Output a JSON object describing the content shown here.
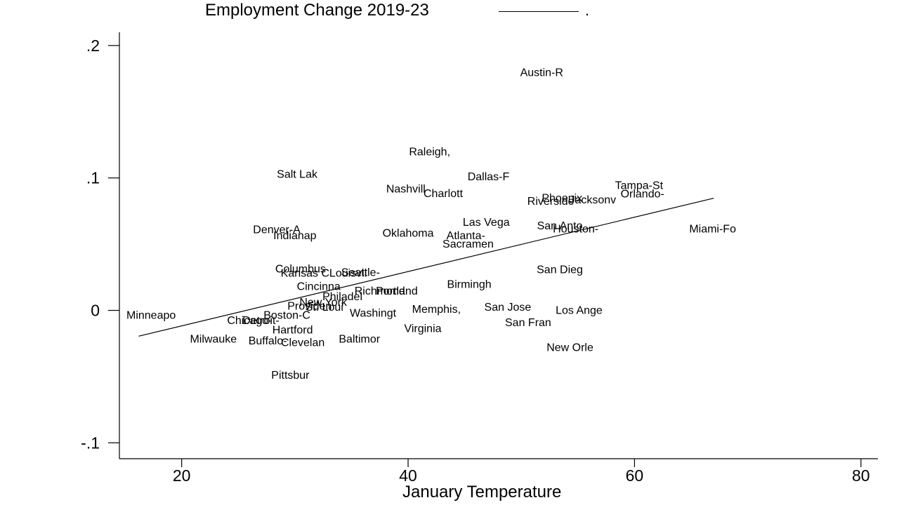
{
  "chart_data": {
    "type": "scatter",
    "title": "Employment Change 2019-23",
    "legend": {
      "label": "."
    },
    "xlabel": "January Temperature",
    "ylabel": "",
    "xlim": [
      14.5,
      81.5
    ],
    "ylim": [
      -0.112,
      0.21
    ],
    "xticks": [
      20,
      40,
      60,
      80
    ],
    "xtick_labels": [
      "20",
      "40",
      "60",
      "80"
    ],
    "yticks": [
      -0.1,
      0,
      0.1,
      0.2
    ],
    "ytick_labels": [
      "-.1",
      "0",
      ".1",
      ".2"
    ],
    "grid": false,
    "fit_line": {
      "x": [
        16.2,
        67.0
      ],
      "y": [
        -0.0195,
        0.0847
      ]
    },
    "points": [
      {
        "label": "Austin-R",
        "x": 51.8,
        "y": 0.1795
      },
      {
        "label": "Raleigh,",
        "x": 41.9,
        "y": 0.1198
      },
      {
        "label": "Salt Lak",
        "x": 30.2,
        "y": 0.1027
      },
      {
        "label": "Dallas-F",
        "x": 47.1,
        "y": 0.101
      },
      {
        "label": "Nashvill",
        "x": 39.8,
        "y": 0.0916
      },
      {
        "label": "Charlott",
        "x": 43.1,
        "y": 0.0882
      },
      {
        "label": "Tampa-St",
        "x": 60.4,
        "y": 0.0944
      },
      {
        "label": "Orlando-",
        "x": 60.7,
        "y": 0.0879
      },
      {
        "label": "Phoenix",
        "x": 53.6,
        "y": 0.0847
      },
      {
        "label": "Jacksonv",
        "x": 56.3,
        "y": 0.0833
      },
      {
        "label": "Riverside",
        "x": 52.6,
        "y": 0.0824
      },
      {
        "label": "Las Vega",
        "x": 46.9,
        "y": 0.0664
      },
      {
        "label": "San Anto",
        "x": 53.4,
        "y": 0.0637
      },
      {
        "label": "Houston-",
        "x": 54.8,
        "y": 0.0614
      },
      {
        "label": "Miami-Fo",
        "x": 66.9,
        "y": 0.0614
      },
      {
        "label": "Denver-A",
        "x": 28.4,
        "y": 0.0609
      },
      {
        "label": "Indianap",
        "x": 30.0,
        "y": 0.0564
      },
      {
        "label": "Oklahoma",
        "x": 40.0,
        "y": 0.0584
      },
      {
        "label": "Atlanta-",
        "x": 45.1,
        "y": 0.0564
      },
      {
        "label": "Sacramen",
        "x": 45.3,
        "y": 0.05
      },
      {
        "label": "Columbus",
        "x": 30.5,
        "y": 0.0313
      },
      {
        "label": "Kansas C",
        "x": 30.9,
        "y": 0.028
      },
      {
        "label": "Louisvil",
        "x": 34.7,
        "y": 0.028
      },
      {
        "label": "Seattle-",
        "x": 35.8,
        "y": 0.0287
      },
      {
        "label": "San Dieg",
        "x": 53.4,
        "y": 0.0306
      },
      {
        "label": "Birmingh",
        "x": 45.4,
        "y": 0.0196
      },
      {
        "label": "Cincinna",
        "x": 32.1,
        "y": 0.018
      },
      {
        "label": "Richmond",
        "x": 37.5,
        "y": 0.0145
      },
      {
        "label": "Portland",
        "x": 39.0,
        "y": 0.0145
      },
      {
        "label": "Philadel",
        "x": 34.2,
        "y": 0.0104
      },
      {
        "label": "New York",
        "x": 32.5,
        "y": 0.006
      },
      {
        "label": "Providen",
        "x": 31.3,
        "y": 0.0032
      },
      {
        "label": "St. Loui",
        "x": 32.6,
        "y": 0.0023
      },
      {
        "label": "San Jose",
        "x": 48.8,
        "y": 0.0023
      },
      {
        "label": "Memphis,",
        "x": 42.5,
        "y": 0.0009
      },
      {
        "label": "Los Ange",
        "x": 55.1,
        "y": 0.0
      },
      {
        "label": "Washingt",
        "x": 36.9,
        "y": -0.0022
      },
      {
        "label": "Minneapo",
        "x": 17.3,
        "y": -0.0036
      },
      {
        "label": "Boston-C",
        "x": 29.3,
        "y": -0.0036
      },
      {
        "label": "Chicago-",
        "x": 26.0,
        "y": -0.0078
      },
      {
        "label": "Detroit-",
        "x": 27.0,
        "y": -0.0078
      },
      {
        "label": "San Fran",
        "x": 50.6,
        "y": -0.0092
      },
      {
        "label": "Virginia",
        "x": 41.3,
        "y": -0.0138
      },
      {
        "label": "Hartford",
        "x": 29.8,
        "y": -0.0147
      },
      {
        "label": "Milwauke",
        "x": 22.8,
        "y": -0.0216
      },
      {
        "label": "Baltimor",
        "x": 35.7,
        "y": -0.0216
      },
      {
        "label": "Buffalo-",
        "x": 27.6,
        "y": -0.023
      },
      {
        "label": "Clevelan",
        "x": 30.7,
        "y": -0.0244
      },
      {
        "label": "New Orle",
        "x": 54.3,
        "y": -0.028
      },
      {
        "label": "Pittsbur",
        "x": 29.6,
        "y": -0.049
      }
    ]
  }
}
